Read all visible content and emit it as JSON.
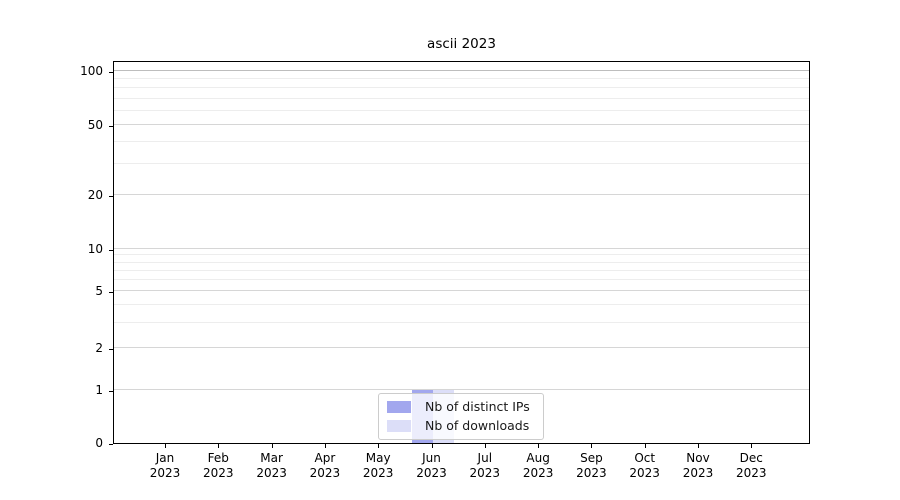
{
  "chart_data": {
    "type": "bar",
    "title": "ascii 2023",
    "categories": [
      "Jan",
      "Feb",
      "Mar",
      "Apr",
      "May",
      "Jun",
      "Jul",
      "Aug",
      "Sep",
      "Oct",
      "Nov",
      "Dec"
    ],
    "year": "2023",
    "y_scale": "symlog",
    "ylim": [
      0,
      115
    ],
    "y_major_ticks": [
      0,
      1,
      2,
      5,
      10,
      20,
      50,
      100
    ],
    "y_minor_ticks": [
      3,
      4,
      6,
      7,
      8,
      9,
      30,
      40,
      60,
      70,
      80,
      90
    ],
    "grid": true,
    "legend_position": "lower center",
    "series": [
      {
        "name": "Nb of distinct IPs",
        "color": "#a2a7ee",
        "values": [
          0,
          0,
          0,
          0,
          0,
          1,
          0,
          0,
          0,
          0,
          0,
          0
        ]
      },
      {
        "name": "Nb of downloads",
        "color": "#dcdef8",
        "values": [
          0,
          0,
          0,
          0,
          0,
          1,
          0,
          0,
          0,
          0,
          0,
          0
        ]
      }
    ]
  }
}
